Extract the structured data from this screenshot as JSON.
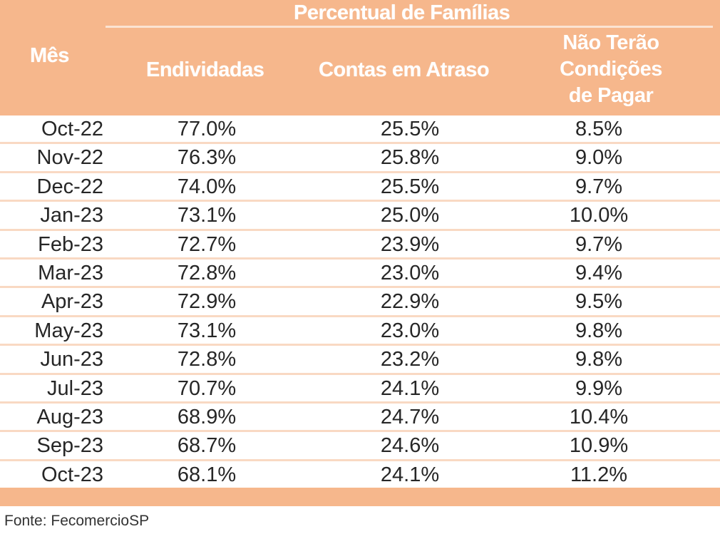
{
  "table": {
    "group_header": "Percentual de Famílias",
    "columns": {
      "mes": "Mês",
      "endividadas": "Endividadas",
      "contas_atraso": "Contas em Atraso",
      "nao_pagar_line1": "Não Terão",
      "nao_pagar_line2": "Condições",
      "nao_pagar_line3": "de Pagar"
    },
    "rows": [
      {
        "mes": "Oct-22",
        "endividadas": "77.0%",
        "contas": "25.5%",
        "nao": "8.5%"
      },
      {
        "mes": "Nov-22",
        "endividadas": "76.3%",
        "contas": "25.8%",
        "nao": "9.0%"
      },
      {
        "mes": "Dec-22",
        "endividadas": "74.0%",
        "contas": "25.5%",
        "nao": "9.7%"
      },
      {
        "mes": "Jan-23",
        "endividadas": "73.1%",
        "contas": "25.0%",
        "nao": "10.0%"
      },
      {
        "mes": "Feb-23",
        "endividadas": "72.7%",
        "contas": "23.9%",
        "nao": "9.7%"
      },
      {
        "mes": "Mar-23",
        "endividadas": "72.8%",
        "contas": "23.0%",
        "nao": "9.4%"
      },
      {
        "mes": "Apr-23",
        "endividadas": "72.9%",
        "contas": "22.9%",
        "nao": "9.5%"
      },
      {
        "mes": "May-23",
        "endividadas": "73.1%",
        "contas": "23.0%",
        "nao": "9.8%"
      },
      {
        "mes": "Jun-23",
        "endividadas": "72.8%",
        "contas": "23.2%",
        "nao": "9.8%"
      },
      {
        "mes": "Jul-23",
        "endividadas": "70.7%",
        "contas": "24.1%",
        "nao": "9.9%"
      },
      {
        "mes": "Aug-23",
        "endividadas": "68.9%",
        "contas": "24.7%",
        "nao": "10.4%"
      },
      {
        "mes": "Sep-23",
        "endividadas": "68.7%",
        "contas": "24.6%",
        "nao": "10.9%"
      },
      {
        "mes": "Oct-23",
        "endividadas": "68.1%",
        "contas": "24.1%",
        "nao": "11.2%"
      }
    ]
  },
  "source": "Fonte: FecomercioSP",
  "colors": {
    "header_bg": "#f6b78c",
    "header_text": "#ffffff",
    "row_divider": "#f9d9c3",
    "body_text": "#262626"
  }
}
